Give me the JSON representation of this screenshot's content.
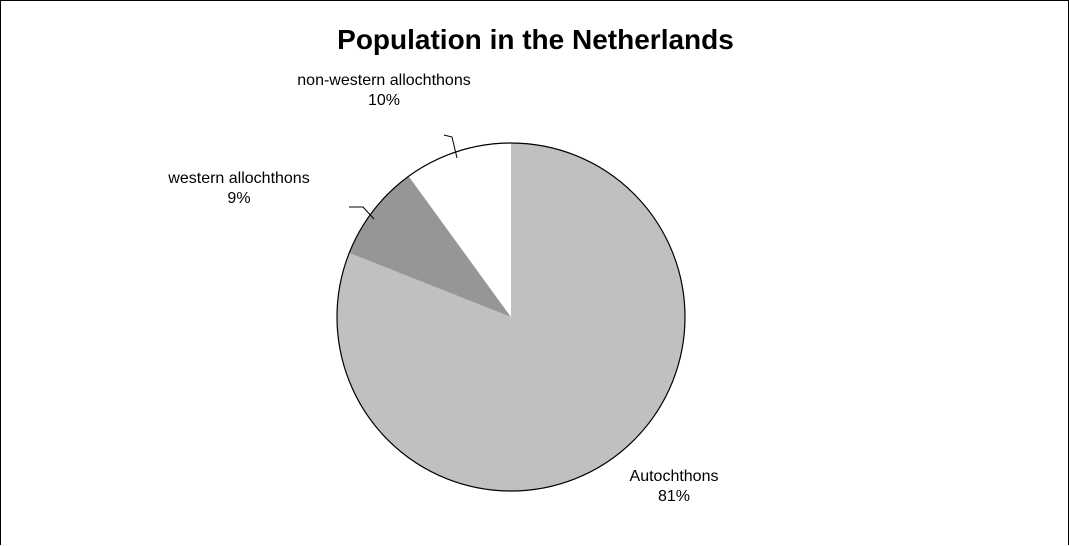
{
  "chart_data": {
    "type": "pie",
    "title": "Population in the Netherlands",
    "slices": [
      {
        "label": "Autochthons",
        "value": 81,
        "value_label": "81%",
        "color": "#c0c0c0"
      },
      {
        "label": "western allochthons",
        "value": 9,
        "value_label": "9%",
        "color": "#969696"
      },
      {
        "label": "non-western allochthons",
        "value": 10,
        "value_label": "10%",
        "color": "#ffffff"
      }
    ],
    "start_angle": "12 o'clock",
    "direction": "clockwise",
    "legend": "none",
    "outline_color": "#000000"
  }
}
